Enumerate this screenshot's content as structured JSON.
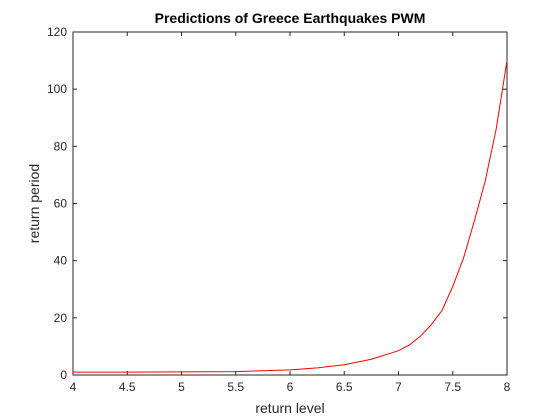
{
  "chart_data": {
    "type": "line",
    "title": "Predictions of Greece Earthquakes PWM",
    "xlabel": "return level",
    "ylabel": "return period",
    "xlim": [
      4,
      8
    ],
    "ylim": [
      0,
      120
    ],
    "x_ticks": [
      4,
      4.5,
      5,
      5.5,
      6,
      6.5,
      7,
      7.5,
      8
    ],
    "x_tick_labels": [
      "4",
      "4.5",
      "5",
      "5.5",
      "6",
      "6.5",
      "7",
      "7.5",
      "8"
    ],
    "y_ticks": [
      0,
      20,
      40,
      60,
      80,
      100,
      120
    ],
    "y_tick_labels": [
      "0",
      "20",
      "40",
      "60",
      "80",
      "100",
      "120"
    ],
    "grid": false,
    "series": [
      {
        "color": "#ff0000",
        "x": [
          4.0,
          4.5,
          5.0,
          5.5,
          6.0,
          6.25,
          6.5,
          6.75,
          7.0,
          7.1,
          7.2,
          7.3,
          7.4,
          7.5,
          7.6,
          7.7,
          7.8,
          7.9,
          8.0
        ],
        "y": [
          1.0,
          1.0,
          1.1,
          1.2,
          1.8,
          2.5,
          3.6,
          5.5,
          8.5,
          10.5,
          13.5,
          17.5,
          22.5,
          31.0,
          41.0,
          54.0,
          68.0,
          86.0,
          110.0
        ]
      }
    ]
  }
}
